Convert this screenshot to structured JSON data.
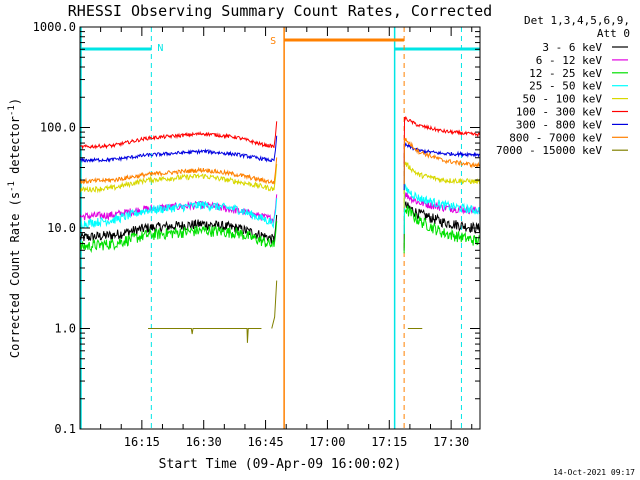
{
  "chart_data": {
    "type": "line",
    "title": "RHESSI Observing Summary Count Rates, Corrected",
    "xlabel": "Start Time (09-Apr-09 16:00:02)",
    "ylabel_main": "Corrected Count Rate (s",
    "ylabel_sup1": "-1",
    "ylabel_mid": " detector",
    "ylabel_sup2": "-1",
    "ylabel_end": ")",
    "y_scale": "log",
    "ylim": [
      0.1,
      1000
    ],
    "xlim_minutes": [
      0,
      97
    ],
    "ytick_labels": [
      "0.1",
      "1.0",
      "10.0",
      "100.0",
      "1000.0"
    ],
    "xtick_labels": [
      "16:15",
      "16:30",
      "16:45",
      "17:00",
      "17:15",
      "17:30"
    ],
    "xtick_minutes": [
      15,
      30,
      45,
      60,
      75,
      90
    ],
    "legend_header": [
      "Det 1,3,4,5,6,9,",
      "Att 0"
    ],
    "legend_placement": "top-right, outside plot",
    "timestamp": "14-Oct-2021 09:17",
    "markers": {
      "n_label": "N",
      "s_label": "S",
      "night_color": "#00e5e5",
      "saa_color": "#ff8000",
      "night_intervals": [
        [
          0,
          17.3
        ],
        [
          76.3,
          92.5
        ]
      ],
      "saa_interval": [
        49.5,
        78.6
      ]
    },
    "gaps": [
      [
        47.7,
        78.6
      ]
    ],
    "series": [
      {
        "name": "3 - 6 keV",
        "color": "#000000",
        "pre": [
          8,
          8.5,
          10,
          11,
          10,
          8.5,
          7.5
        ],
        "post": [
          17,
          14,
          11.5,
          10
        ]
      },
      {
        "name": "6 - 12 keV",
        "color": "#e000e0",
        "pre": [
          13,
          13.5,
          15.5,
          17,
          15,
          13,
          12
        ],
        "post": [
          22,
          18,
          16,
          15
        ]
      },
      {
        "name": "12 - 25 keV",
        "color": "#00e000",
        "pre": [
          6.5,
          7,
          8.5,
          9.5,
          9,
          7.5,
          6.5
        ],
        "post": [
          16,
          12,
          9,
          7.5
        ]
      },
      {
        "name": "25 - 50 keV",
        "color": "#00ffff",
        "pre": [
          11,
          12,
          15,
          17,
          15.5,
          12.5,
          11
        ],
        "post": [
          25,
          20,
          17,
          15
        ]
      },
      {
        "name": "50 - 100 keV",
        "color": "#d8d800",
        "pre": [
          24,
          25,
          30,
          33,
          29,
          26,
          24
        ],
        "post": [
          45,
          34,
          30,
          29
        ]
      },
      {
        "name": "100 - 300 keV",
        "color": "#ff0000",
        "pre": [
          64,
          66,
          78,
          87,
          80,
          68,
          64
        ],
        "post": [
          125,
          105,
          92,
          85
        ]
      },
      {
        "name": "300 - 800 keV",
        "color": "#0000e0",
        "pre": [
          47,
          48,
          53,
          58,
          54,
          49,
          46
        ],
        "post": [
          68,
          59,
          55,
          54
        ]
      },
      {
        "name": "800 - 7000 keV",
        "color": "#ff8000",
        "pre": [
          29,
          30,
          34,
          38,
          34,
          30,
          28
        ],
        "post": [
          78,
          58,
          47,
          42
        ]
      },
      {
        "name": "7000 - 15000 keV",
        "color": "#808000",
        "pre": [],
        "post": []
      }
    ]
  }
}
